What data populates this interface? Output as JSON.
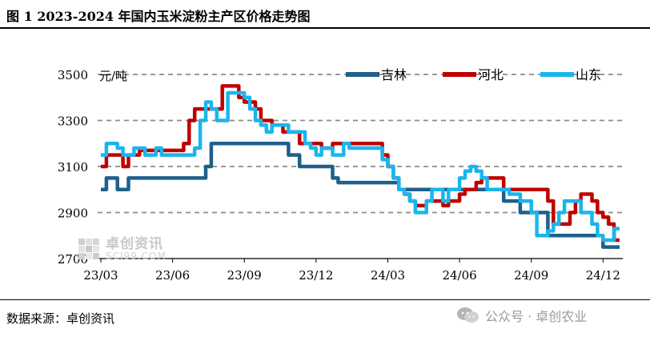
{
  "title": "图 1 2023-2024 年国内玉米淀粉主产区价格走势图",
  "source": "数据来源：卓创资讯",
  "watermarks": {
    "chart_logo_main": "卓创资讯",
    "chart_logo_sub": "SCI99.COM",
    "wechat": "公众号 · 卓创农业"
  },
  "chart_data": {
    "type": "line",
    "unit_label": "元/吨",
    "ylim": [
      2700,
      3500
    ],
    "yticks": [
      2700,
      2900,
      3100,
      3300,
      3500
    ],
    "x_tick_labels": [
      "23/03",
      "23/06",
      "23/09",
      "23/12",
      "24/03",
      "24/06",
      "24/09",
      "24/12"
    ],
    "x_tick_index": [
      0,
      13,
      26,
      39,
      52,
      65,
      78,
      91
    ],
    "grid": "horizontal-dashed",
    "legend_placement": "top-right",
    "series": [
      {
        "name": "吉林",
        "color": "#1f5f8b",
        "values": [
          3000,
          3050,
          3050,
          3000,
          3000,
          3050,
          3050,
          3050,
          3050,
          3050,
          3050,
          3050,
          3050,
          3050,
          3050,
          3050,
          3050,
          3050,
          3050,
          3100,
          3200,
          3200,
          3200,
          3200,
          3200,
          3200,
          3200,
          3200,
          3200,
          3200,
          3200,
          3200,
          3200,
          3200,
          3150,
          3150,
          3100,
          3100,
          3100,
          3100,
          3100,
          3100,
          3050,
          3030,
          3030,
          3030,
          3030,
          3030,
          3030,
          3030,
          3030,
          3030,
          3030,
          3030,
          3000,
          3000,
          3000,
          3000,
          3000,
          3000,
          3000,
          3000,
          3000,
          3000,
          3000,
          3000,
          3000,
          3000,
          3000,
          3000,
          3000,
          3000,
          3000,
          2950,
          2950,
          2950,
          2900,
          2900,
          2900,
          2900,
          2900,
          2800,
          2800,
          2800,
          2800,
          2800,
          2800,
          2800,
          2800,
          2800,
          2800,
          2750,
          2750,
          2750,
          2750
        ]
      },
      {
        "name": "河北",
        "color": "#c00000",
        "values": [
          3100,
          3150,
          3150,
          3150,
          3100,
          3150,
          3150,
          3170,
          3170,
          3170,
          3170,
          3170,
          3170,
          3170,
          3170,
          3200,
          3300,
          3350,
          3350,
          3350,
          3350,
          3350,
          3450,
          3450,
          3450,
          3400,
          3380,
          3380,
          3350,
          3300,
          3300,
          3280,
          3280,
          3250,
          3250,
          3250,
          3200,
          3200,
          3200,
          3200,
          3180,
          3180,
          3200,
          3200,
          3200,
          3200,
          3200,
          3200,
          3200,
          3200,
          3200,
          3150,
          3100,
          3050,
          3000,
          2980,
          2950,
          2930,
          2930,
          2950,
          2950,
          2950,
          2930,
          2950,
          2950,
          2980,
          3000,
          3000,
          3030,
          3050,
          3050,
          3050,
          3050,
          3000,
          3000,
          3000,
          3000,
          3000,
          3000,
          3000,
          3000,
          2950,
          2850,
          2850,
          2850,
          2900,
          2950,
          2980,
          2980,
          2950,
          2900,
          2880,
          2850,
          2780,
          2780
        ]
      },
      {
        "name": "山东",
        "color": "#19b6ee",
        "values": [
          3150,
          3200,
          3200,
          3180,
          3150,
          3150,
          3180,
          3180,
          3150,
          3150,
          3180,
          3150,
          3150,
          3150,
          3150,
          3150,
          3150,
          3180,
          3300,
          3380,
          3350,
          3300,
          3300,
          3420,
          3420,
          3420,
          3400,
          3350,
          3300,
          3280,
          3250,
          3280,
          3280,
          3280,
          3250,
          3250,
          3250,
          3200,
          3180,
          3150,
          3180,
          3180,
          3150,
          3150,
          3200,
          3180,
          3180,
          3180,
          3180,
          3180,
          3180,
          3130,
          3100,
          3050,
          3000,
          2980,
          2950,
          2900,
          2900,
          2950,
          3000,
          3000,
          2950,
          3000,
          3000,
          3050,
          3080,
          3100,
          3080,
          3050,
          3000,
          3000,
          3000,
          3000,
          2980,
          2980,
          2950,
          2950,
          2900,
          2800,
          2800,
          2820,
          2850,
          2900,
          2950,
          2950,
          2950,
          2900,
          2900,
          2850,
          2800,
          2780,
          2780,
          2830,
          2830
        ]
      }
    ]
  }
}
